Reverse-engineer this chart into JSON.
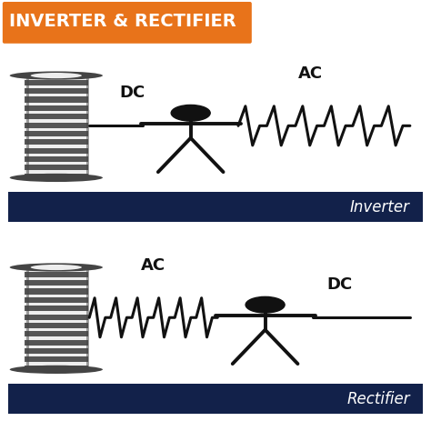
{
  "title": "INVERTER & RECTIFIER",
  "title_bg_color": "#E8731A",
  "title_text_color": "#FFFFFF",
  "bg_color": "#FFFFFF",
  "panel_bg_color": "#EFEFEF",
  "dark_bar_color": "#12214A",
  "coil_body_color": "#555555",
  "coil_cap_color": "#444444",
  "coil_stripe_color": "#EEEEEE",
  "line_color": "#111111",
  "label1_dc": "DC",
  "label1_ac": "AC",
  "label2_ac": "AC",
  "label2_dc": "DC",
  "panel1_label": "Inverter",
  "panel2_label": "Rectifier"
}
